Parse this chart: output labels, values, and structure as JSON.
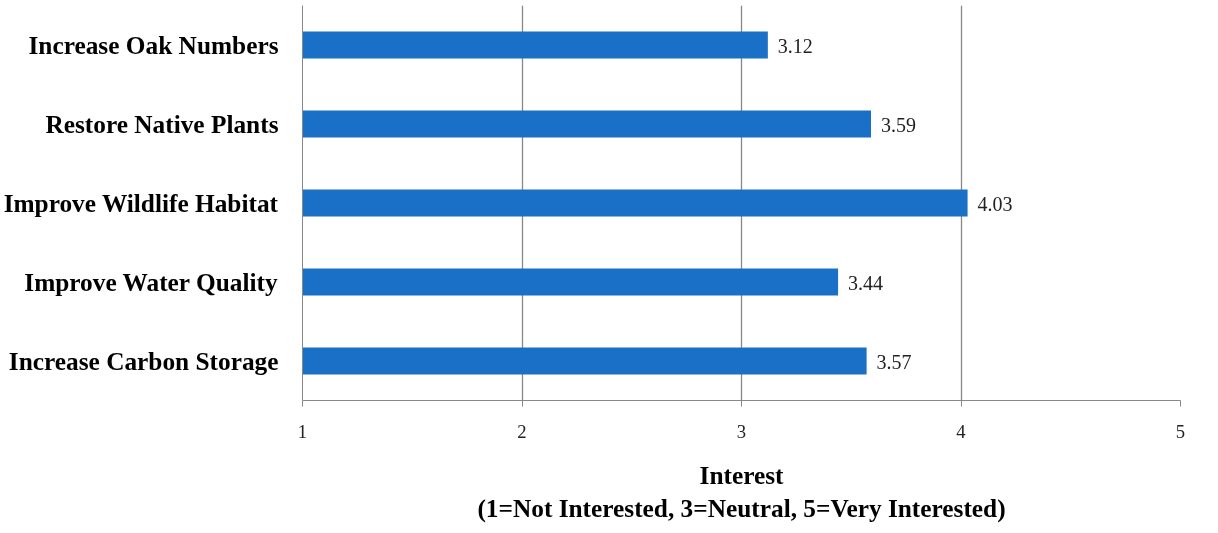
{
  "chart_data": {
    "type": "bar",
    "orientation": "horizontal",
    "categories": [
      "Increase Oak Numbers",
      "Restore Native Plants",
      "Improve Wildlife Habitat",
      "Improve Water Quality",
      "Increase Carbon Storage"
    ],
    "values": [
      3.12,
      3.59,
      4.03,
      3.44,
      3.57
    ],
    "color": "#1a70c6",
    "xlim": [
      1,
      5
    ],
    "xticks": [
      1,
      2,
      3,
      4,
      5
    ],
    "xlabel": "Interest\n(1=Not Interested, 3=Neutral, 5=Very Interested)",
    "grid": "x",
    "data_labels": true
  }
}
